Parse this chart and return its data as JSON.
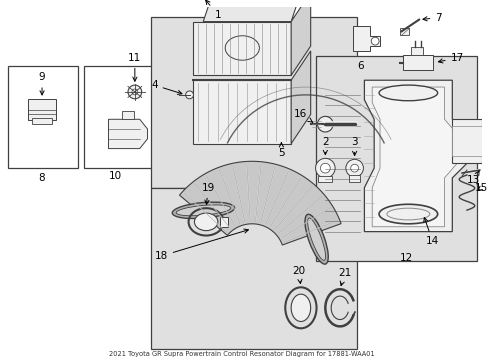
{
  "title": "2021 Toyota GR Supra Powertrain Control Resonator Diagram for 17881-WAA01",
  "bg_color": "#ffffff",
  "light_gray": "#d8d8d8",
  "dark_gray": "#404040",
  "mid_gray": "#888888",
  "box_fill": "#f0f0f0",
  "dot_fill": "#e0e0e0"
}
